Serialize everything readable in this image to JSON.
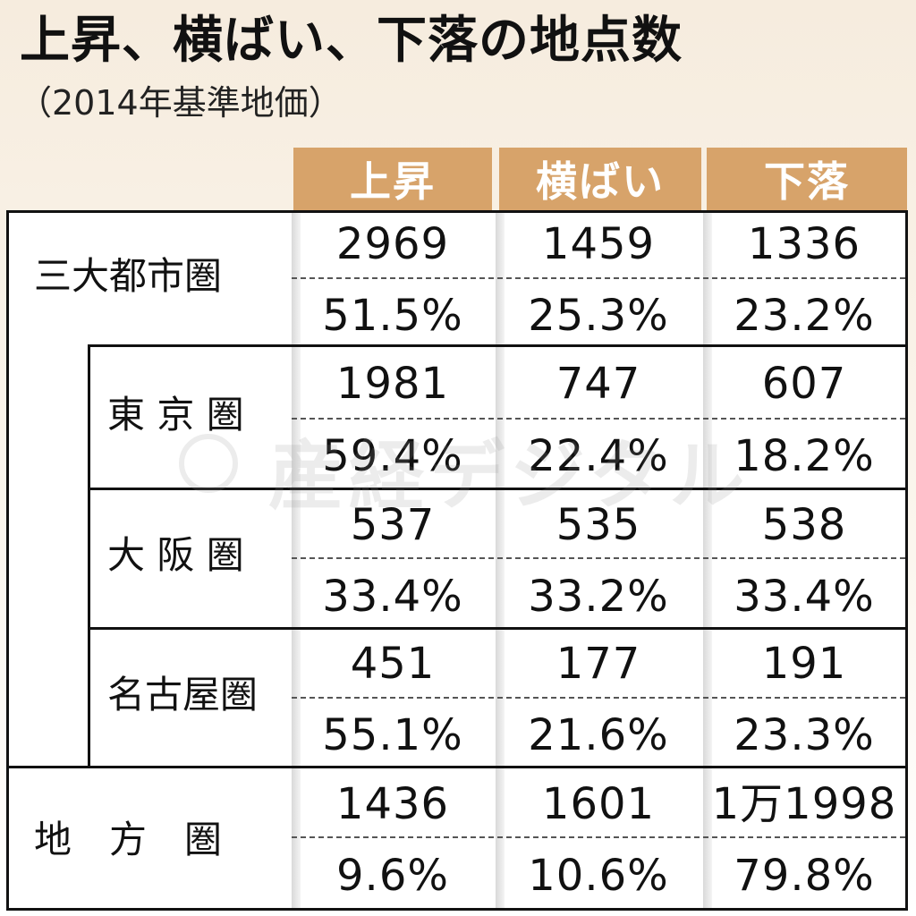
{
  "chart_data": {
    "type": "table",
    "title": "上昇、横ばい、下落の地点数",
    "subtitle": "（2014年基準地価）",
    "columns": [
      "上昇",
      "横ばい",
      "下落"
    ],
    "rows": [
      {
        "label": "三大都市圏",
        "counts": [
          "2969",
          "1459",
          "1336"
        ],
        "shares": [
          "51.5%",
          "25.3%",
          "23.2%"
        ]
      },
      {
        "label": "東 京 圏",
        "counts": [
          "1981",
          "747",
          "607"
        ],
        "shares": [
          "59.4%",
          "22.4%",
          "18.2%"
        ]
      },
      {
        "label": "大 阪 圏",
        "counts": [
          "537",
          "535",
          "538"
        ],
        "shares": [
          "33.4%",
          "33.2%",
          "33.4%"
        ]
      },
      {
        "label": "名古屋圏",
        "counts": [
          "451",
          "177",
          "191"
        ],
        "shares": [
          "55.1%",
          "21.6%",
          "23.3%"
        ]
      },
      {
        "label": "地　方　圏",
        "counts": [
          "1436",
          "1601",
          "1万1998"
        ],
        "shares": [
          "9.6%",
          "10.6%",
          "79.8%"
        ]
      }
    ],
    "watermark": "産経デジタル"
  },
  "colors": {
    "header_bg": "#d7a36a",
    "header_text": "#ffffff",
    "page_bg_top": "#f6ecde"
  }
}
